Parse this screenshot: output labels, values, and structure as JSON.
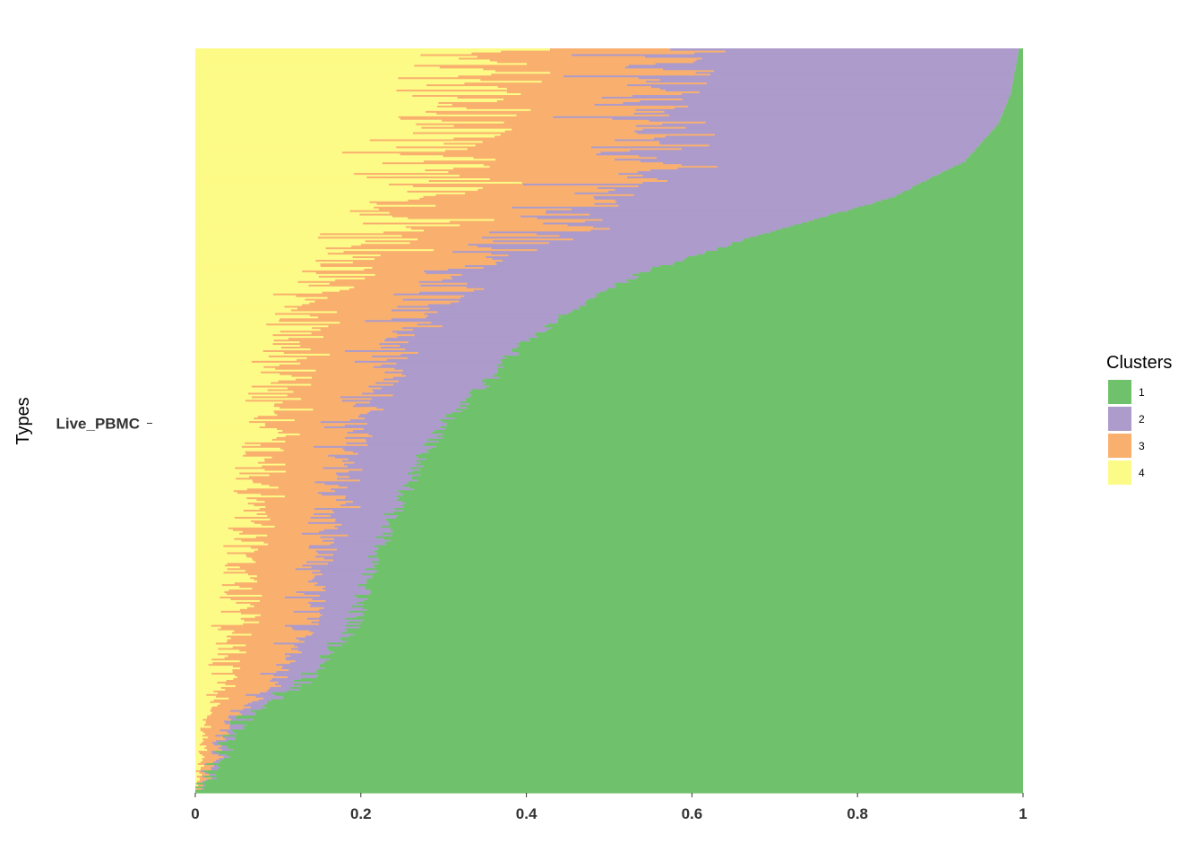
{
  "chart_data": {
    "type": "bar",
    "orientation": "horizontal",
    "stacked": true,
    "normalized": true,
    "xlabel": "",
    "ylabel": "Types",
    "xlim": [
      0,
      1
    ],
    "x_ticks": [
      "0",
      "0.2",
      "0.4",
      "0.6",
      "0.8",
      "1"
    ],
    "y_category": "Live_PBMC",
    "row_count": 420,
    "stack_order": [
      "1",
      "2",
      "3",
      "4"
    ],
    "legend": {
      "title": "Clusters",
      "position": "right",
      "entries": [
        {
          "name": "1",
          "color": "#6fc26b"
        },
        {
          "name": "2",
          "color": "#ac9bcb"
        },
        {
          "name": "3",
          "color": "#f9b06f"
        },
        {
          "name": "4",
          "color": "#fdfb87"
        }
      ]
    },
    "cluster1_profile": {
      "row_fraction": [
        0.0,
        0.01,
        0.03,
        0.05,
        0.07,
        0.09,
        0.11,
        0.13,
        0.15,
        0.17,
        0.19,
        0.21,
        0.23,
        0.26,
        0.29,
        0.32,
        0.36,
        0.4,
        0.44,
        0.48,
        0.52,
        0.56,
        0.6,
        0.63,
        0.66,
        0.7,
        0.75,
        0.8,
        0.85,
        0.9,
        0.94,
        0.97,
        1.0
      ],
      "share": [
        1.0,
        0.99,
        0.98,
        0.97,
        0.96,
        0.95,
        0.93,
        0.9,
        0.87,
        0.85,
        0.84,
        0.82,
        0.81,
        0.8,
        0.79,
        0.78,
        0.77,
        0.75,
        0.73,
        0.71,
        0.68,
        0.64,
        0.61,
        0.57,
        0.53,
        0.46,
        0.32,
        0.16,
        0.07,
        0.03,
        0.015,
        0.01,
        0.005
      ]
    }
  }
}
